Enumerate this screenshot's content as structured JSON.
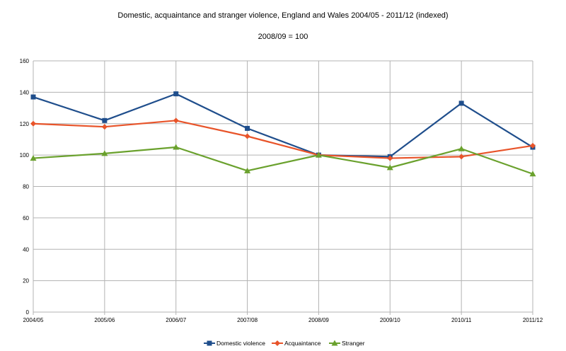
{
  "chart_data": {
    "type": "line",
    "title": "Domestic, acquaintance and stranger violence, England and Wales 2004/05 - 2011/12 (indexed)",
    "subtitle": "2008/09 = 100",
    "xlabel": "",
    "ylabel": "",
    "categories": [
      "2004/05",
      "2005/06",
      "2006/07",
      "2007/08",
      "2008/09",
      "2009/10",
      "2010/11",
      "2011/12"
    ],
    "ylim": [
      0,
      160
    ],
    "yticks": [
      0,
      20,
      40,
      60,
      80,
      100,
      120,
      140,
      160
    ],
    "grid": true,
    "legend_position": "bottom",
    "series": [
      {
        "name": "Domestic violence",
        "color": "#1f4e8c",
        "marker": "square",
        "values": [
          137,
          122,
          139,
          117,
          100,
          99,
          133,
          105
        ]
      },
      {
        "name": "Acquaintance",
        "color": "#e8542a",
        "marker": "diamond",
        "values": [
          120,
          118,
          122,
          112,
          100,
          98,
          99,
          106
        ]
      },
      {
        "name": "Stranger",
        "color": "#6aa12d",
        "marker": "triangle",
        "values": [
          98,
          101,
          105,
          90,
          100,
          92,
          104,
          88
        ]
      }
    ]
  }
}
